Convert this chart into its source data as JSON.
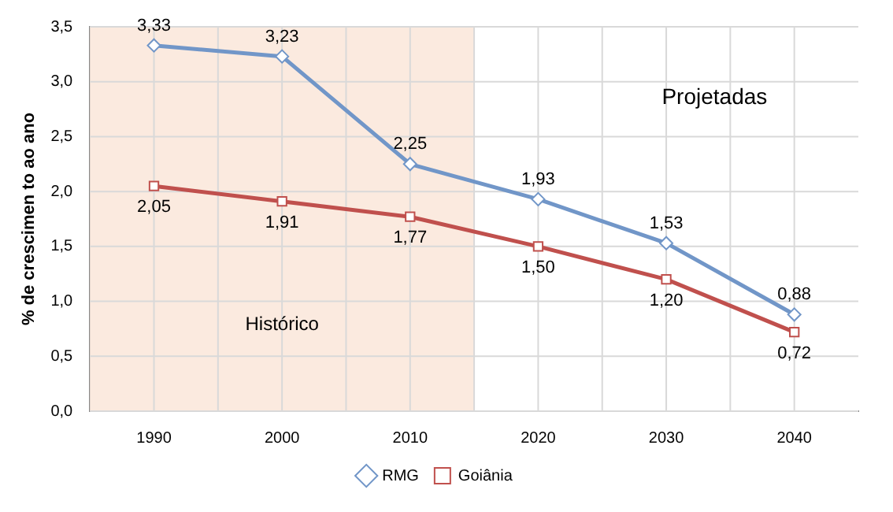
{
  "chart_data": {
    "type": "line",
    "ylabel": "% de crescimen to ao ano",
    "x": [
      1990,
      2000,
      2010,
      2020,
      2030,
      2040
    ],
    "xlim": [
      1985,
      2045
    ],
    "xticks": [
      1990,
      {
        "value": 1995,
        "label": null
      },
      2000,
      {
        "value": 2005,
        "label": null
      },
      2010,
      {
        "value": 2015,
        "label": null
      },
      2020,
      {
        "value": 2025,
        "label": null
      },
      2030,
      {
        "value": 2035,
        "label": null
      },
      2040
    ],
    "ylim": [
      0,
      3.5
    ],
    "yticks": [
      {
        "value": 0,
        "label": "0,0"
      },
      {
        "value": 0.5,
        "label": "0,5"
      },
      {
        "value": 1,
        "label": "1,0"
      },
      {
        "value": 1.5,
        "label": "1,5"
      },
      {
        "value": 2,
        "label": "2,0"
      },
      {
        "value": 2.5,
        "label": "2,5"
      },
      {
        "value": 3,
        "label": "3,0"
      },
      {
        "value": 3.5,
        "label": "3,5"
      }
    ],
    "grid": true,
    "legend": "bottom",
    "bands": [
      {
        "axis": "x",
        "from": 1985,
        "to": 2015,
        "label": "Histórico",
        "color": "#fbeadf"
      }
    ],
    "annotations": [
      "Projetadas"
    ],
    "series": [
      {
        "name": "RMG",
        "color": "#7196c8",
        "marker": "diamond",
        "values": [
          3.33,
          3.23,
          2.25,
          1.93,
          1.53,
          0.88
        ],
        "value_labels": [
          "3,33",
          "3,23",
          "2,25",
          "1,93",
          "1,53",
          "0,88"
        ]
      },
      {
        "name": "Goiânia",
        "color": "#c0504d",
        "marker": "square",
        "values": [
          2.05,
          1.91,
          1.77,
          1.5,
          1.2,
          0.72
        ],
        "value_labels": [
          "2,05",
          "1,91",
          "1,77",
          "1,50",
          "1,20",
          "0,72"
        ]
      }
    ]
  }
}
